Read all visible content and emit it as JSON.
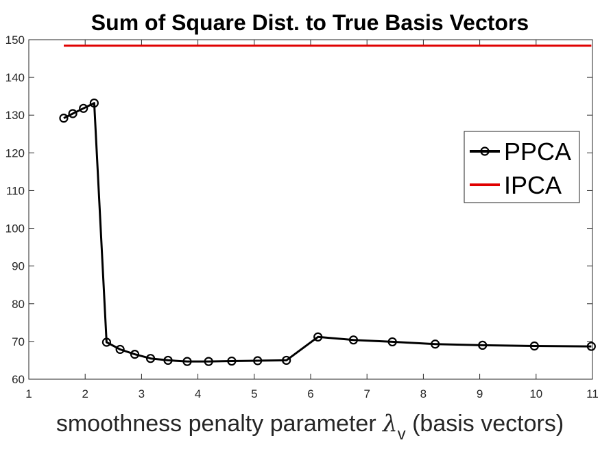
{
  "chart_data": {
    "type": "line",
    "title": "Sum of Square Dist. to True Basis Vectors",
    "xlabel_prefix": "smoothness penalty parameter ",
    "xlabel_symbol": "λ",
    "xlabel_subscript": "v",
    "xlabel_suffix": " (basis vectors)",
    "ylabel": "",
    "xlim": [
      1,
      11
    ],
    "ylim": [
      60,
      150
    ],
    "xticks": [
      1,
      2,
      3,
      4,
      5,
      6,
      7,
      8,
      9,
      10,
      11
    ],
    "yticks": [
      60,
      70,
      80,
      90,
      100,
      110,
      120,
      130,
      140,
      150
    ],
    "grid": false,
    "legend_position": "right",
    "series": [
      {
        "name": "PPCA",
        "color": "#000000",
        "marker": "circle",
        "x": [
          1.62,
          1.78,
          1.97,
          2.16,
          2.38,
          2.62,
          2.88,
          3.16,
          3.47,
          3.81,
          4.19,
          4.6,
          5.06,
          5.57,
          6.13,
          6.76,
          7.45,
          8.21,
          9.05,
          9.97,
          10.98
        ],
        "y": [
          129.2,
          130.4,
          131.8,
          133.2,
          69.8,
          67.9,
          66.6,
          65.5,
          65.0,
          64.7,
          64.7,
          64.8,
          64.9,
          65.0,
          71.2,
          70.4,
          69.9,
          69.3,
          69.0,
          68.8,
          68.7
        ]
      },
      {
        "name": "IPCA",
        "color": "#e00000",
        "marker": "none",
        "x": [
          1.62,
          10.98
        ],
        "y": [
          148.4,
          148.4
        ]
      }
    ]
  }
}
